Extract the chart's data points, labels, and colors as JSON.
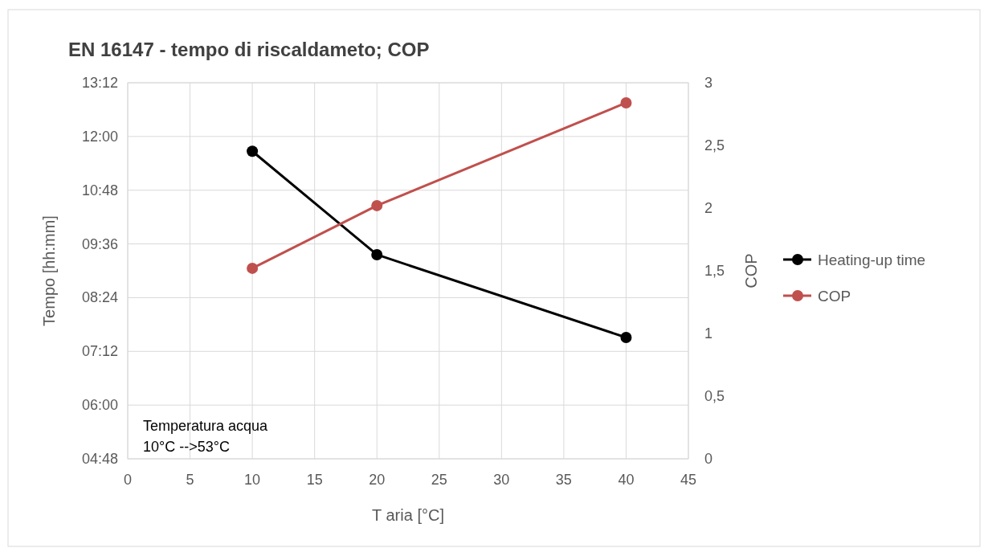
{
  "chart_data": {
    "type": "line",
    "title": "EN 16147 -  tempo di riscaldameto; COP",
    "xlabel": "T aria [°C]",
    "ylabel": "Tempo [hh:mm]",
    "y2label": "COP",
    "x": [
      10,
      20,
      40
    ],
    "series": [
      {
        "name": "Heating-up time",
        "color": "#000000",
        "values": [
          11.67,
          9.36,
          7.51
        ]
      },
      {
        "name": "COP",
        "color": "#c0504d",
        "values": [
          1.52,
          2.02,
          2.84
        ],
        "axis": "y2"
      }
    ],
    "xlim": [
      0,
      45
    ],
    "xticks": [
      0,
      5,
      10,
      15,
      20,
      25,
      30,
      35,
      40,
      45
    ],
    "ylim": [
      4.8,
      13.2
    ],
    "yticks": [
      {
        "value": 4.8,
        "label": "04:48"
      },
      {
        "value": 6,
        "label": "06:00"
      },
      {
        "value": 7.2,
        "label": "07:12"
      },
      {
        "value": 8.4,
        "label": "08:24"
      },
      {
        "value": 9.6,
        "label": "09:36"
      },
      {
        "value": 10.8,
        "label": "10:48"
      },
      {
        "value": 12,
        "label": "12:00"
      },
      {
        "value": 13.2,
        "label": "13:12"
      }
    ],
    "y2lim": [
      0,
      3
    ],
    "y2ticks": [
      0,
      {
        "value": 0.5,
        "label": "0,5"
      },
      1,
      {
        "value": 1.5,
        "label": "1,5"
      },
      2,
      {
        "value": 2.5,
        "label": "2,5"
      },
      3
    ],
    "grid": true,
    "legend": "right",
    "marker": "circle",
    "line_style": "solid",
    "annotations": [
      "Temperatura acqua\n10°C -->53°C"
    ]
  }
}
